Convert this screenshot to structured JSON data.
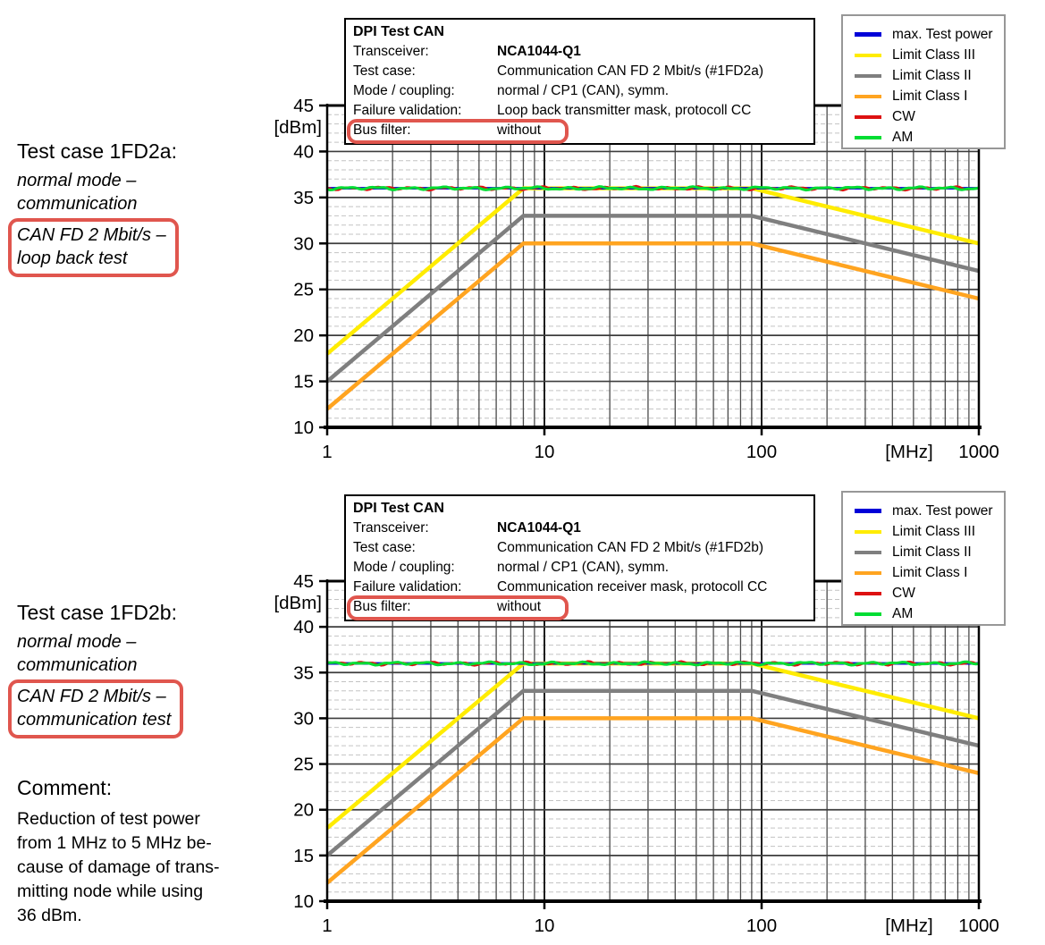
{
  "highlight_color": "#e0564e",
  "left_panels": [
    {
      "title": "Test case 1FD2a:",
      "italic_lines": [
        "normal mode –",
        "communication"
      ],
      "boxed_lines": [
        "CAN FD 2 Mbit/s –",
        "loop back test"
      ]
    },
    {
      "title": "Test case 1FD2b:",
      "italic_lines": [
        "normal mode –",
        "communication"
      ],
      "boxed_lines": [
        "CAN FD 2 Mbit/s –",
        "communication test"
      ]
    }
  ],
  "comment": {
    "title": "Comment:",
    "lines": [
      "Reduction of test power",
      "from 1 MHz to 5 MHz be-",
      "cause of damage of trans-",
      "mitting node while using",
      "36 dBm."
    ]
  },
  "info_boxes": [
    {
      "title": "DPI Test CAN",
      "rows": [
        {
          "label": "Transceiver:",
          "value": "NCA1044-Q1",
          "bold": true
        },
        {
          "label": "Test case:",
          "value": "Communication CAN FD 2 Mbit/s (#1FD2a)"
        },
        {
          "label": "Mode / coupling:",
          "value": "normal / CP1 (CAN), symm."
        },
        {
          "label": "Failure validation:",
          "value": "Loop back transmitter mask, protocoll CC"
        },
        {
          "label": "Bus filter:",
          "value": "without",
          "highlighted": true
        }
      ]
    },
    {
      "title": "DPI Test CAN",
      "rows": [
        {
          "label": "Transceiver:",
          "value": "NCA1044-Q1",
          "bold": true
        },
        {
          "label": "Test case:",
          "value": "Communication CAN FD 2 Mbit/s (#1FD2b)"
        },
        {
          "label": "Mode / coupling:",
          "value": "normal / CP1 (CAN), symm."
        },
        {
          "label": "Failure validation:",
          "value": "Communication receiver mask, protocoll CC"
        },
        {
          "label": "Bus filter:",
          "value": "without",
          "highlighted": true
        }
      ]
    }
  ],
  "legend": {
    "items": [
      {
        "label": "max. Test power",
        "color": "#0000d8"
      },
      {
        "label": "Limit Class III",
        "color": "#ffec00"
      },
      {
        "label": "Limit Class II",
        "color": "#7f7f7f"
      },
      {
        "label": "Limit Class I",
        "color": "#ffa420"
      },
      {
        "label": "CW",
        "color": "#dd1111"
      },
      {
        "label": "AM",
        "color": "#00dd33"
      }
    ]
  },
  "chart_data": [
    {
      "type": "line",
      "title": "DPI Test CAN #1FD2a",
      "x_scale": "log",
      "xlim": [
        1,
        1000
      ],
      "ylim": [
        10,
        45
      ],
      "x_ticks": [
        1,
        10,
        100,
        1000
      ],
      "y_ticks": [
        10,
        15,
        20,
        25,
        30,
        35,
        40,
        45
      ],
      "x_axis_unit": "[MHz]",
      "y_axis_unit": "[dBm]",
      "grid": "vertical log lines each mantissa, horizontal solid each 5 dB, dashed each 1 dB",
      "legend_position": "top-right",
      "series": [
        {
          "name": "max. Test power",
          "color": "#0000d8",
          "style": "measured-flat",
          "points": [
            [
              1,
              36
            ],
            [
              1000,
              36
            ]
          ]
        },
        {
          "name": "Limit Class III",
          "color": "#ffec00",
          "style": "limit",
          "points": [
            [
              1,
              18
            ],
            [
              8,
              36
            ],
            [
              90,
              36
            ],
            [
              1000,
              30
            ]
          ]
        },
        {
          "name": "Limit Class II",
          "color": "#7f7f7f",
          "style": "limit",
          "points": [
            [
              1,
              15
            ],
            [
              8,
              33
            ],
            [
              90,
              33
            ],
            [
              1000,
              27
            ]
          ]
        },
        {
          "name": "Limit Class I",
          "color": "#ffa420",
          "style": "limit",
          "points": [
            [
              1,
              12
            ],
            [
              8,
              30
            ],
            [
              90,
              30
            ],
            [
              1000,
              24
            ]
          ]
        },
        {
          "name": "CW",
          "color": "#dd1111",
          "style": "measured-noisy",
          "points": [
            [
              1,
              36
            ],
            [
              1000,
              36
            ]
          ]
        },
        {
          "name": "AM",
          "color": "#00dd33",
          "style": "measured-noisy",
          "points": [
            [
              1,
              36
            ],
            [
              1000,
              36
            ]
          ]
        }
      ]
    },
    {
      "type": "line",
      "title": "DPI Test CAN #1FD2b",
      "x_scale": "log",
      "xlim": [
        1,
        1000
      ],
      "ylim": [
        10,
        45
      ],
      "x_ticks": [
        1,
        10,
        100,
        1000
      ],
      "y_ticks": [
        10,
        15,
        20,
        25,
        30,
        35,
        40,
        45
      ],
      "x_axis_unit": "[MHz]",
      "y_axis_unit": "[dBm]",
      "grid": "vertical log lines each mantissa, horizontal solid each 5 dB, dashed each 1 dB",
      "legend_position": "top-right",
      "series": [
        {
          "name": "max. Test power",
          "color": "#0000d8",
          "style": "measured-flat",
          "points": [
            [
              1,
              36
            ],
            [
              1000,
              36
            ]
          ]
        },
        {
          "name": "Limit Class III",
          "color": "#ffec00",
          "style": "limit",
          "points": [
            [
              1,
              18
            ],
            [
              8,
              36
            ],
            [
              90,
              36
            ],
            [
              1000,
              30
            ]
          ]
        },
        {
          "name": "Limit Class II",
          "color": "#7f7f7f",
          "style": "limit",
          "points": [
            [
              1,
              15
            ],
            [
              8,
              33
            ],
            [
              90,
              33
            ],
            [
              1000,
              27
            ]
          ]
        },
        {
          "name": "Limit Class I",
          "color": "#ffa420",
          "style": "limit",
          "points": [
            [
              1,
              12
            ],
            [
              8,
              30
            ],
            [
              90,
              30
            ],
            [
              1000,
              24
            ]
          ]
        },
        {
          "name": "CW",
          "color": "#dd1111",
          "style": "measured-noisy",
          "points": [
            [
              1,
              36
            ],
            [
              1000,
              36
            ]
          ]
        },
        {
          "name": "AM",
          "color": "#00dd33",
          "style": "measured-noisy",
          "points": [
            [
              1,
              36
            ],
            [
              1000,
              36
            ]
          ]
        }
      ]
    }
  ]
}
